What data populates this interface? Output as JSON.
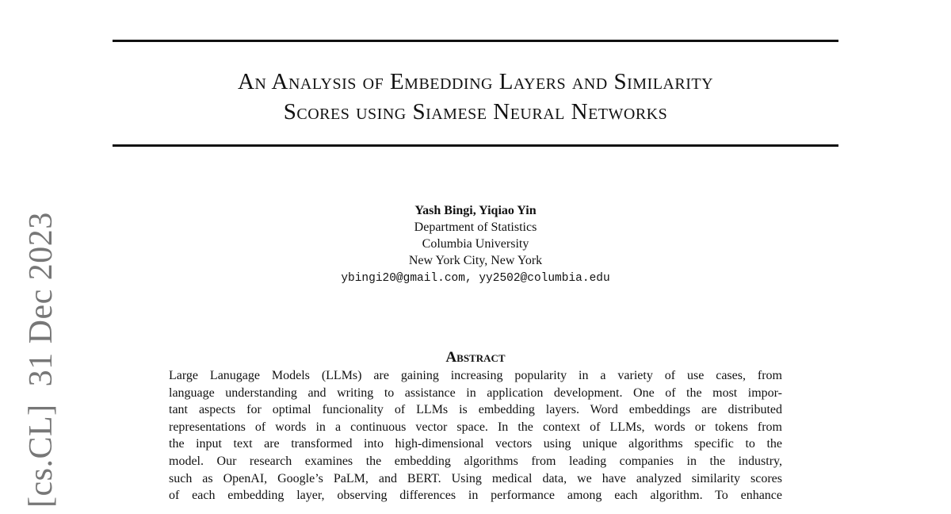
{
  "arxiv_stamp": {
    "category": "[cs.CL]",
    "date": "31 Dec 2023"
  },
  "title": {
    "lines": [
      "An Analysis of Embedding Layers and Similarity",
      "Scores using Siamese Neural Networks"
    ]
  },
  "authors": {
    "names": "Yash Bingi, Yiqiao Yin",
    "department": "Department of Statistics",
    "university": "Columbia University",
    "location": "New York City, New York",
    "emails": "ybingi20@gmail.com, yy2502@columbia.edu"
  },
  "abstract": {
    "heading": "Abstract",
    "lines": [
      "Large Lanugage Models (LLMs) are gaining increasing popularity in a variety of use cases, from",
      "language understanding and writing to assistance in application development. One of the most impor-",
      "tant aspects for optimal funcionality of LLMs is embedding layers. Word embeddings are distributed",
      "representations of words in a continuous vector space. In the context of LLMs, words or tokens from",
      "the input text are transformed into high-dimensional vectors using unique algorithms specific to the",
      "model. Our research examines the embedding algorithms from leading companies in the industry,",
      "such as OpenAI, Google’s PaLM, and BERT. Using medical data, we have analyzed similarity scores",
      "of each embedding layer, observing differences in performance among each algorithm. To enhance"
    ]
  }
}
